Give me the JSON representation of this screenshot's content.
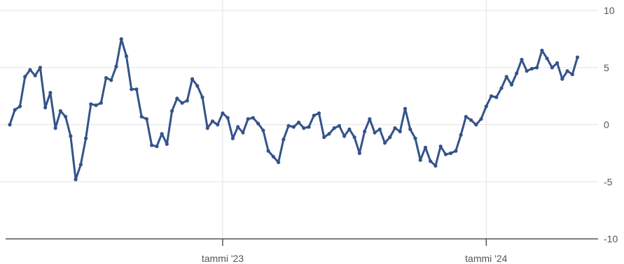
{
  "chart_data": {
    "type": "line",
    "title": "",
    "xlabel": "",
    "ylabel": "",
    "ylim": [
      -10,
      10
    ],
    "y_ticks": [
      10,
      5,
      0,
      -5,
      -10
    ],
    "x_ticks": [
      {
        "label": "tammi '23",
        "index": 42
      },
      {
        "label": "tammi '24",
        "index": 94
      }
    ],
    "grid": true,
    "legend": "none",
    "line_color": "#34538a",
    "series": [
      {
        "values": [
          0.0,
          1.3,
          1.6,
          4.2,
          4.8,
          4.3,
          5.0,
          1.5,
          2.8,
          -0.3,
          1.2,
          0.7,
          -1.0,
          -4.8,
          -3.5,
          -1.2,
          1.8,
          1.7,
          1.9,
          4.1,
          3.9,
          5.1,
          7.5,
          6.0,
          3.1,
          3.1,
          0.7,
          0.5,
          -1.8,
          -1.9,
          -0.8,
          -1.7,
          1.2,
          2.3,
          1.9,
          2.1,
          4.0,
          3.4,
          2.4,
          -0.3,
          0.3,
          0.0,
          1.0,
          0.6,
          -1.2,
          -0.2,
          -0.7,
          0.5,
          0.6,
          0.1,
          -0.5,
          -2.3,
          -2.8,
          -3.3,
          -1.3,
          -0.1,
          -0.2,
          0.2,
          -0.3,
          -0.2,
          0.8,
          1.0,
          -1.1,
          -0.8,
          -0.3,
          -0.1,
          -1.0,
          -0.4,
          -1.1,
          -2.5,
          -0.6,
          0.5,
          -0.7,
          -0.4,
          -1.6,
          -1.1,
          -0.3,
          -0.6,
          1.4,
          -0.4,
          -1.2,
          -3.1,
          -2.0,
          -3.2,
          -3.6,
          -1.9,
          -2.6,
          -2.5,
          -2.3,
          -0.9,
          0.7,
          0.4,
          0.0,
          0.5,
          1.6,
          2.5,
          2.4,
          3.2,
          4.2,
          3.5,
          4.5,
          5.7,
          4.7,
          4.9,
          5.0,
          6.5,
          5.8,
          5.0,
          5.4,
          4.0,
          4.7,
          4.4,
          5.9
        ]
      }
    ]
  }
}
